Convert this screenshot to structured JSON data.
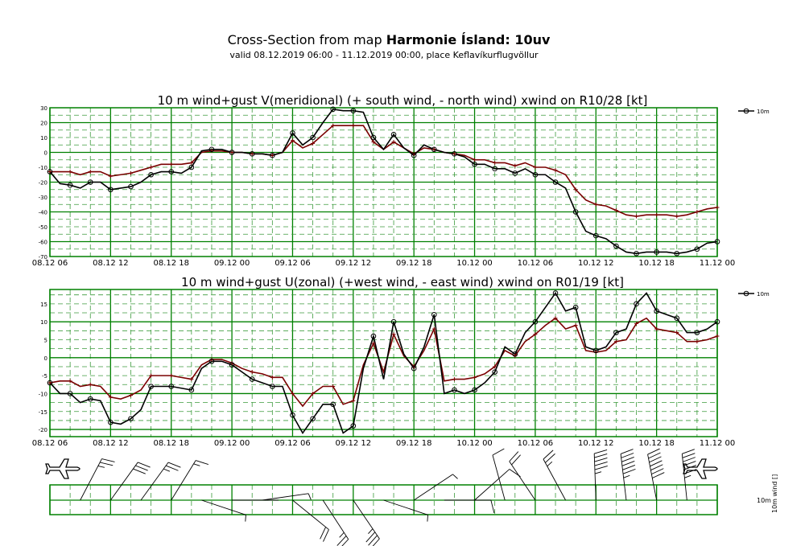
{
  "header": {
    "title_prefix": "Cross-Section from map ",
    "title_bold": "Harmonie Ísland: 10uv",
    "subtitle": "valid 08.12.2019 06:00 - 11.12.2019 00:00, place Keflavíkurflugvöllur"
  },
  "colors": {
    "grid_major": "#008000",
    "grid_minor": "#3c9a3c",
    "series_wind": "#000000",
    "series_gust": "#7a0000"
  },
  "x_tick_labels": [
    "08.12 06",
    "08.12 12",
    "08.12 18",
    "09.12 00",
    "09.12 06",
    "09.12 12",
    "09.12 18",
    "10.12 00",
    "10.12 06",
    "10.12 12",
    "10.12 18",
    "11.12 00"
  ],
  "side": {
    "label_10m": "10m",
    "label_vertical": "10m wind []"
  },
  "chart_data": [
    {
      "type": "line",
      "title": "10 m wind+gust V(meridional) (+ south wind, - north wind) xwind on R10/28 [kt]",
      "x_start": "08.12.2019 06:00",
      "x_step_hours": 1,
      "ylim": [
        -70,
        30
      ],
      "yticks": [
        30,
        20,
        10,
        0,
        -10,
        -20,
        -30,
        -40,
        -50,
        -60,
        -70
      ],
      "legend": {
        "label": "10m",
        "placement": "right"
      },
      "grid": true,
      "series": [
        {
          "role": "wind",
          "values": [
            -13,
            -21,
            -22,
            -24,
            -20,
            -20,
            -25,
            -24,
            -23,
            -20,
            -15,
            -13,
            -13,
            -14,
            -10,
            1,
            2,
            2,
            0,
            0,
            -1,
            -1,
            -2,
            0,
            13,
            5,
            10,
            20,
            29,
            28,
            28,
            27,
            10,
            2,
            12,
            3,
            -2,
            5,
            2,
            0,
            -1,
            -3,
            -8,
            -8,
            -11,
            -11,
            -14,
            -11,
            -15,
            -15,
            -20,
            -24,
            -40,
            -53,
            -56,
            -58,
            -63,
            -67,
            -68,
            -67,
            -67,
            -67,
            -68,
            -67,
            -65,
            -61,
            -60
          ]
        },
        {
          "role": "gust",
          "values": [
            -13,
            -13,
            -13,
            -15,
            -13,
            -13,
            -16,
            -15,
            -14,
            -12,
            -10,
            -8,
            -8,
            -8,
            -7,
            0,
            1,
            1,
            0,
            0,
            -1,
            -1,
            -2,
            0,
            8,
            3,
            6,
            12,
            18,
            18,
            18,
            18,
            7,
            2,
            7,
            3,
            -1,
            3,
            2,
            0,
            -1,
            -2,
            -5,
            -5,
            -7,
            -7,
            -9,
            -7,
            -10,
            -10,
            -12,
            -15,
            -25,
            -32,
            -35,
            -36,
            -39,
            -42,
            -43,
            -42,
            -42,
            -42,
            -43,
            -42,
            -40,
            -38,
            -37
          ]
        }
      ]
    },
    {
      "type": "line",
      "title": "10 m wind+gust U(zonal) (+west wind, - east wind) xwind on R01/19 [kt]",
      "x_start": "08.12.2019 06:00",
      "x_step_hours": 1,
      "ylim": [
        -22,
        19
      ],
      "yticks": [
        15,
        10,
        5,
        0,
        -5,
        -10,
        -15,
        -20
      ],
      "legend": {
        "label": "10m",
        "placement": "right"
      },
      "grid": true,
      "series": [
        {
          "role": "wind",
          "values": [
            -7,
            -10,
            -10,
            -12.5,
            -11.5,
            -12,
            -18,
            -18.5,
            -17,
            -14.5,
            -8,
            -8,
            -8,
            -8.5,
            -9,
            -3,
            -1,
            -1,
            -2,
            -4,
            -6,
            -7,
            -8,
            -8,
            -16,
            -21,
            -17,
            -13,
            -13,
            -21,
            -19,
            -3,
            6,
            -6,
            10,
            1,
            -3,
            3,
            12,
            -10,
            -9,
            -10,
            -9,
            -7,
            -4,
            3,
            1,
            7,
            10,
            14,
            18,
            13,
            14,
            3,
            2,
            3,
            7,
            8,
            15,
            18,
            13,
            12,
            11,
            7,
            7,
            8,
            10
          ]
        },
        {
          "role": "gust",
          "values": [
            -7,
            -6.5,
            -6.5,
            -8,
            -7.5,
            -8,
            -11,
            -11.5,
            -10.5,
            -9,
            -5,
            -5,
            -5,
            -5.5,
            -6,
            -2,
            -0.5,
            -0.5,
            -1.5,
            -3,
            -4,
            -4.5,
            -5.5,
            -5.5,
            -10,
            -13.5,
            -10,
            -8,
            -8,
            -13,
            -12,
            -2,
            4,
            -4,
            6.5,
            0.5,
            -2.5,
            2,
            8,
            -6.5,
            -6,
            -6,
            -5.5,
            -4.5,
            -2.5,
            2,
            0.5,
            4.5,
            6.5,
            9,
            11,
            8,
            9,
            2,
            1.5,
            2,
            4.5,
            5,
            9.5,
            11,
            8,
            7.5,
            7,
            4.5,
            4.5,
            5,
            6
          ]
        }
      ]
    }
  ]
}
